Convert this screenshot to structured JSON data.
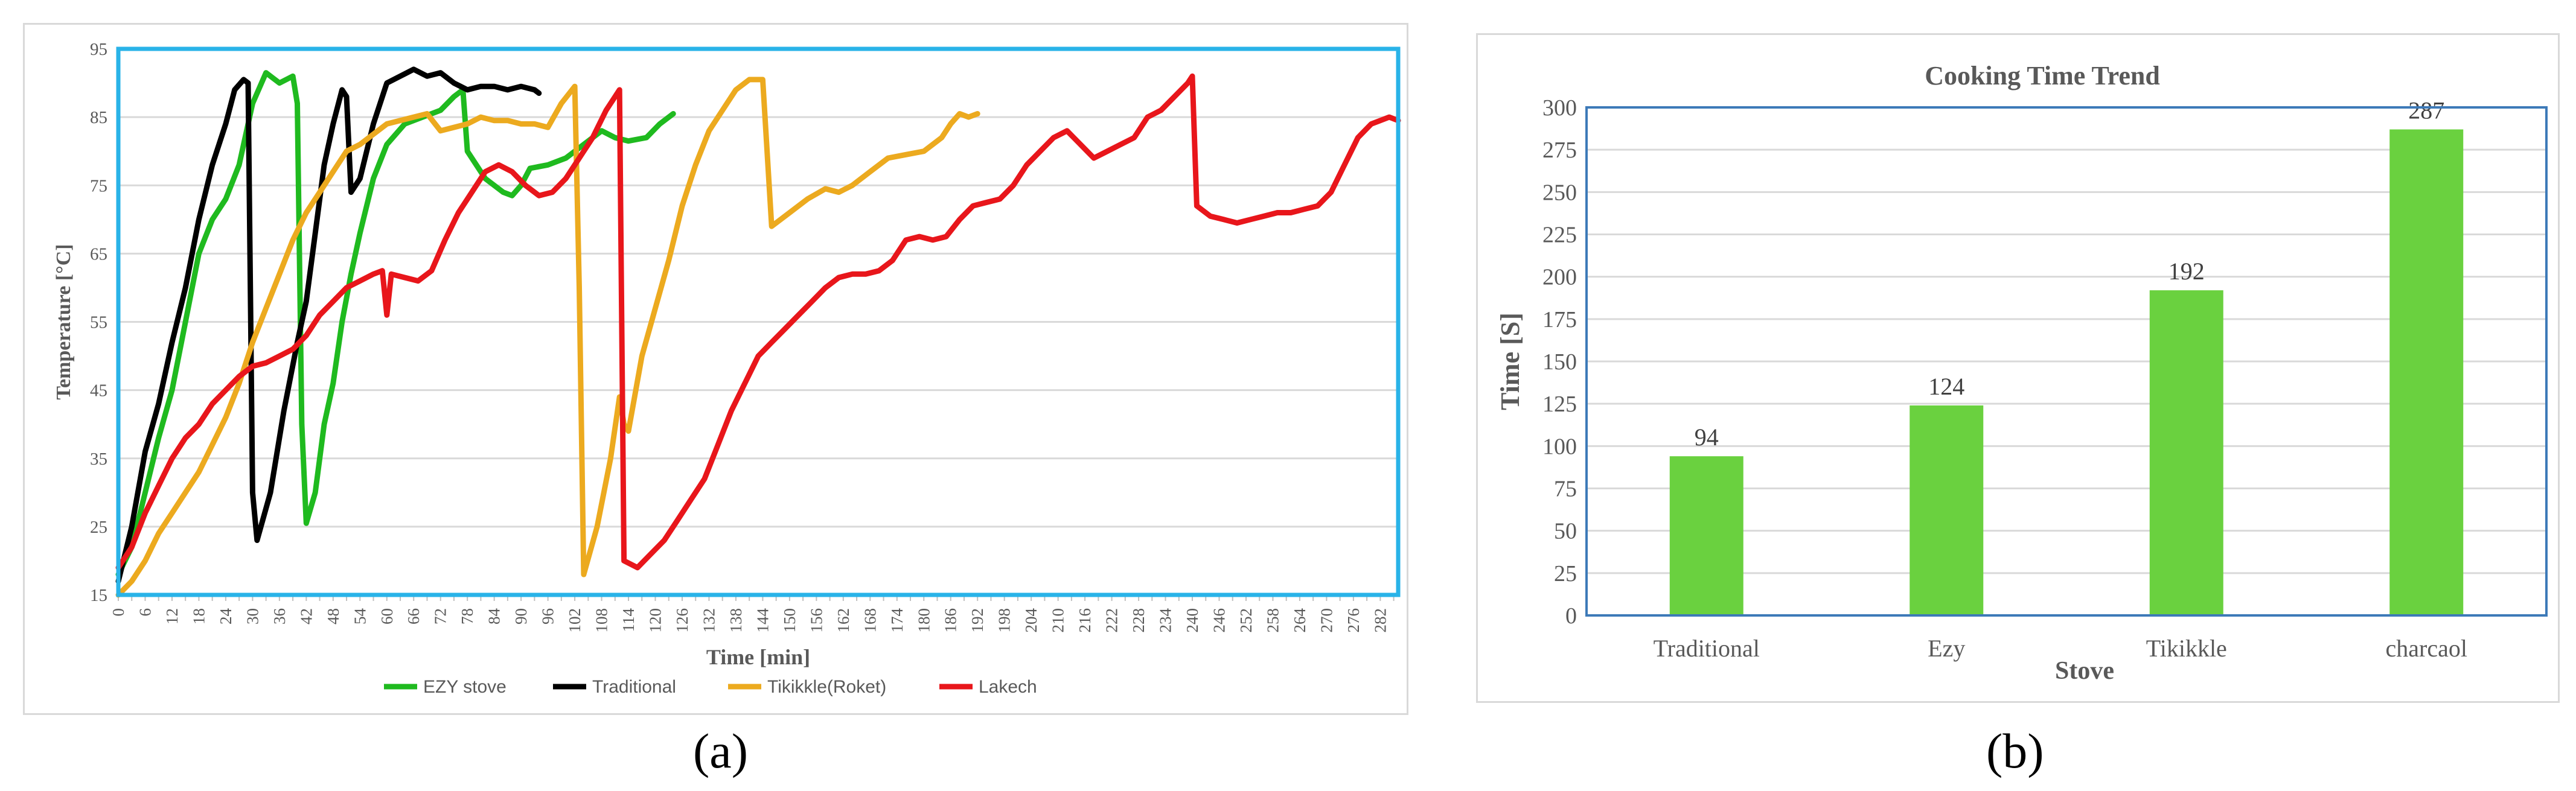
{
  "chart_data": [
    {
      "type": "line",
      "xlabel": "Time [min]",
      "ylabel": "Temperature [°C]",
      "xlim": [
        0,
        286
      ],
      "ylim": [
        15,
        95
      ],
      "yticks": [
        15,
        25,
        35,
        45,
        55,
        65,
        75,
        85,
        95
      ],
      "xtick_step": 3,
      "xtick_label_step": 6,
      "grid": "horizontal",
      "legend_position": "bottom",
      "colors": {
        "frame": "#29b3e8"
      },
      "series": [
        {
          "name": "EZY stove",
          "color": "#1fba1f",
          "points": [
            [
              0,
              18
            ],
            [
              3,
              22
            ],
            [
              6,
              30
            ],
            [
              9,
              38
            ],
            [
              12,
              45
            ],
            [
              15,
              55
            ],
            [
              18,
              65
            ],
            [
              21,
              70
            ],
            [
              24,
              73
            ],
            [
              27,
              78
            ],
            [
              30,
              87
            ],
            [
              33,
              91.5
            ],
            [
              36,
              90
            ],
            [
              39,
              91
            ],
            [
              40,
              87
            ],
            [
              41,
              40
            ],
            [
              42,
              25.5
            ],
            [
              44,
              30
            ],
            [
              46,
              40
            ],
            [
              48,
              46
            ],
            [
              50,
              55
            ],
            [
              52,
              62
            ],
            [
              54,
              68
            ],
            [
              57,
              76
            ],
            [
              60,
              81
            ],
            [
              64,
              84
            ],
            [
              68,
              85
            ],
            [
              72,
              86
            ],
            [
              75,
              88
            ],
            [
              77,
              89
            ],
            [
              78,
              80
            ],
            [
              82,
              76
            ],
            [
              86,
              74
            ],
            [
              88,
              73.5
            ],
            [
              90,
              75
            ],
            [
              92,
              77.5
            ],
            [
              96,
              78
            ],
            [
              100,
              79
            ],
            [
              104,
              81
            ],
            [
              108,
              83
            ],
            [
              111,
              82
            ],
            [
              114,
              81.5
            ],
            [
              118,
              82
            ],
            [
              121,
              84
            ],
            [
              124,
              85.5
            ]
          ]
        },
        {
          "name": "Traditional",
          "color": "#000000",
          "points": [
            [
              0,
              17
            ],
            [
              3,
              25
            ],
            [
              6,
              36
            ],
            [
              9,
              43
            ],
            [
              12,
              52
            ],
            [
              15,
              60
            ],
            [
              18,
              70
            ],
            [
              21,
              78
            ],
            [
              24,
              84
            ],
            [
              26,
              89
            ],
            [
              28,
              90.5
            ],
            [
              29,
              90
            ],
            [
              30,
              30
            ],
            [
              31,
              23
            ],
            [
              34,
              30
            ],
            [
              37,
              42
            ],
            [
              40,
              52
            ],
            [
              42,
              58
            ],
            [
              44,
              68
            ],
            [
              46,
              78
            ],
            [
              48,
              84
            ],
            [
              50,
              89
            ],
            [
              51,
              88
            ],
            [
              52,
              74
            ],
            [
              54,
              76
            ],
            [
              57,
              84
            ],
            [
              60,
              90
            ],
            [
              63,
              91
            ],
            [
              66,
              92
            ],
            [
              69,
              91
            ],
            [
              72,
              91.5
            ],
            [
              75,
              90
            ],
            [
              78,
              89
            ],
            [
              81,
              89.5
            ],
            [
              84,
              89.5
            ],
            [
              87,
              89
            ],
            [
              90,
              89.5
            ],
            [
              93,
              89
            ],
            [
              94,
              88.5
            ]
          ]
        },
        {
          "name": "Tikikkle(Roket)",
          "color": "#ecaa1f",
          "points": [
            [
              0,
              15
            ],
            [
              3,
              17
            ],
            [
              6,
              20
            ],
            [
              9,
              24
            ],
            [
              12,
              27
            ],
            [
              15,
              30
            ],
            [
              18,
              33
            ],
            [
              21,
              37
            ],
            [
              24,
              41
            ],
            [
              27,
              46
            ],
            [
              30,
              52
            ],
            [
              33,
              57
            ],
            [
              36,
              62
            ],
            [
              39,
              67
            ],
            [
              42,
              71
            ],
            [
              45,
              74
            ],
            [
              48,
              77
            ],
            [
              51,
              80
            ],
            [
              54,
              81
            ],
            [
              57,
              82.5
            ],
            [
              60,
              84
            ],
            [
              63,
              84.5
            ],
            [
              66,
              85
            ],
            [
              69,
              85.5
            ],
            [
              72,
              83
            ],
            [
              75,
              83.5
            ],
            [
              78,
              84
            ],
            [
              81,
              85
            ],
            [
              84,
              84.5
            ],
            [
              87,
              84.5
            ],
            [
              90,
              84
            ],
            [
              93,
              84
            ],
            [
              96,
              83.5
            ],
            [
              99,
              87
            ],
            [
              102,
              89.5
            ],
            [
              103,
              60
            ],
            [
              104,
              18
            ],
            [
              107,
              25
            ],
            [
              110,
              35
            ],
            [
              112,
              44
            ],
            [
              113,
              40
            ],
            [
              114,
              39
            ],
            [
              117,
              50
            ],
            [
              120,
              57
            ],
            [
              123,
              64
            ],
            [
              126,
              72
            ],
            [
              129,
              78
            ],
            [
              132,
              83
            ],
            [
              135,
              86
            ],
            [
              138,
              89
            ],
            [
              141,
              90.5
            ],
            [
              144,
              90.5
            ],
            [
              146,
              69
            ],
            [
              150,
              71
            ],
            [
              154,
              73
            ],
            [
              158,
              74.5
            ],
            [
              161,
              74
            ],
            [
              164,
              75
            ],
            [
              168,
              77
            ],
            [
              172,
              79
            ],
            [
              176,
              79.5
            ],
            [
              180,
              80
            ],
            [
              184,
              82
            ],
            [
              186,
              84
            ],
            [
              188,
              85.5
            ],
            [
              190,
              85
            ],
            [
              192,
              85.5
            ]
          ]
        },
        {
          "name": "Lakech",
          "color": "#e8161b",
          "points": [
            [
              0,
              19
            ],
            [
              3,
              22
            ],
            [
              6,
              27
            ],
            [
              9,
              31
            ],
            [
              12,
              35
            ],
            [
              15,
              38
            ],
            [
              18,
              40
            ],
            [
              21,
              43
            ],
            [
              24,
              45
            ],
            [
              27,
              47
            ],
            [
              30,
              48.5
            ],
            [
              33,
              49
            ],
            [
              36,
              50
            ],
            [
              39,
              51
            ],
            [
              42,
              53
            ],
            [
              45,
              56
            ],
            [
              48,
              58
            ],
            [
              51,
              60
            ],
            [
              54,
              61
            ],
            [
              57,
              62
            ],
            [
              59,
              62.5
            ],
            [
              60,
              56
            ],
            [
              61,
              62
            ],
            [
              64,
              61.5
            ],
            [
              67,
              61
            ],
            [
              70,
              62.5
            ],
            [
              73,
              67
            ],
            [
              76,
              71
            ],
            [
              79,
              74
            ],
            [
              82,
              77
            ],
            [
              85,
              78
            ],
            [
              88,
              77
            ],
            [
              91,
              75
            ],
            [
              94,
              73.5
            ],
            [
              97,
              74
            ],
            [
              100,
              76
            ],
            [
              103,
              79
            ],
            [
              106,
              82
            ],
            [
              109,
              86
            ],
            [
              112,
              89
            ],
            [
              113,
              20
            ],
            [
              116,
              19
            ],
            [
              119,
              21
            ],
            [
              122,
              23
            ],
            [
              125,
              26
            ],
            [
              128,
              29
            ],
            [
              131,
              32
            ],
            [
              134,
              37
            ],
            [
              137,
              42
            ],
            [
              140,
              46
            ],
            [
              143,
              50
            ],
            [
              146,
              52
            ],
            [
              149,
              54
            ],
            [
              152,
              56
            ],
            [
              155,
              58
            ],
            [
              158,
              60
            ],
            [
              161,
              61.5
            ],
            [
              164,
              62
            ],
            [
              167,
              62
            ],
            [
              170,
              62.5
            ],
            [
              173,
              64
            ],
            [
              176,
              67
            ],
            [
              179,
              67.5
            ],
            [
              182,
              67
            ],
            [
              185,
              67.5
            ],
            [
              188,
              70
            ],
            [
              191,
              72
            ],
            [
              194,
              72.5
            ],
            [
              197,
              73
            ],
            [
              200,
              75
            ],
            [
              203,
              78
            ],
            [
              206,
              80
            ],
            [
              209,
              82
            ],
            [
              212,
              83
            ],
            [
              215,
              81
            ],
            [
              218,
              79
            ],
            [
              221,
              80
            ],
            [
              224,
              81
            ],
            [
              227,
              82
            ],
            [
              230,
              85
            ],
            [
              233,
              86
            ],
            [
              236,
              88
            ],
            [
              239,
              90
            ],
            [
              240,
              91
            ],
            [
              241,
              72
            ],
            [
              244,
              70.5
            ],
            [
              247,
              70
            ],
            [
              250,
              69.5
            ],
            [
              253,
              70
            ],
            [
              256,
              70.5
            ],
            [
              259,
              71
            ],
            [
              262,
              71
            ],
            [
              265,
              71.5
            ],
            [
              268,
              72
            ],
            [
              271,
              74
            ],
            [
              274,
              78
            ],
            [
              277,
              82
            ],
            [
              280,
              84
            ],
            [
              282,
              84.5
            ],
            [
              284,
              85
            ],
            [
              286,
              84.5
            ]
          ]
        }
      ]
    },
    {
      "type": "bar",
      "title": "Cooking Time Trend",
      "xlabel": "Stove",
      "ylabel": "Time [S]",
      "categories": [
        "Traditional",
        "Ezy",
        "Tikikkle",
        "charcaol"
      ],
      "values": [
        94,
        124,
        192,
        287
      ],
      "data_labels": [
        "94",
        "124",
        "192",
        "287"
      ],
      "ylim": [
        0,
        300
      ],
      "yticks": [
        0,
        25,
        50,
        75,
        100,
        125,
        150,
        175,
        200,
        225,
        250,
        275,
        300
      ],
      "grid": "horizontal",
      "colors": {
        "bar": "#6ad13f",
        "frame": "#3d7ab8"
      }
    }
  ],
  "captions": {
    "a": "(a)",
    "b": "(b)"
  }
}
